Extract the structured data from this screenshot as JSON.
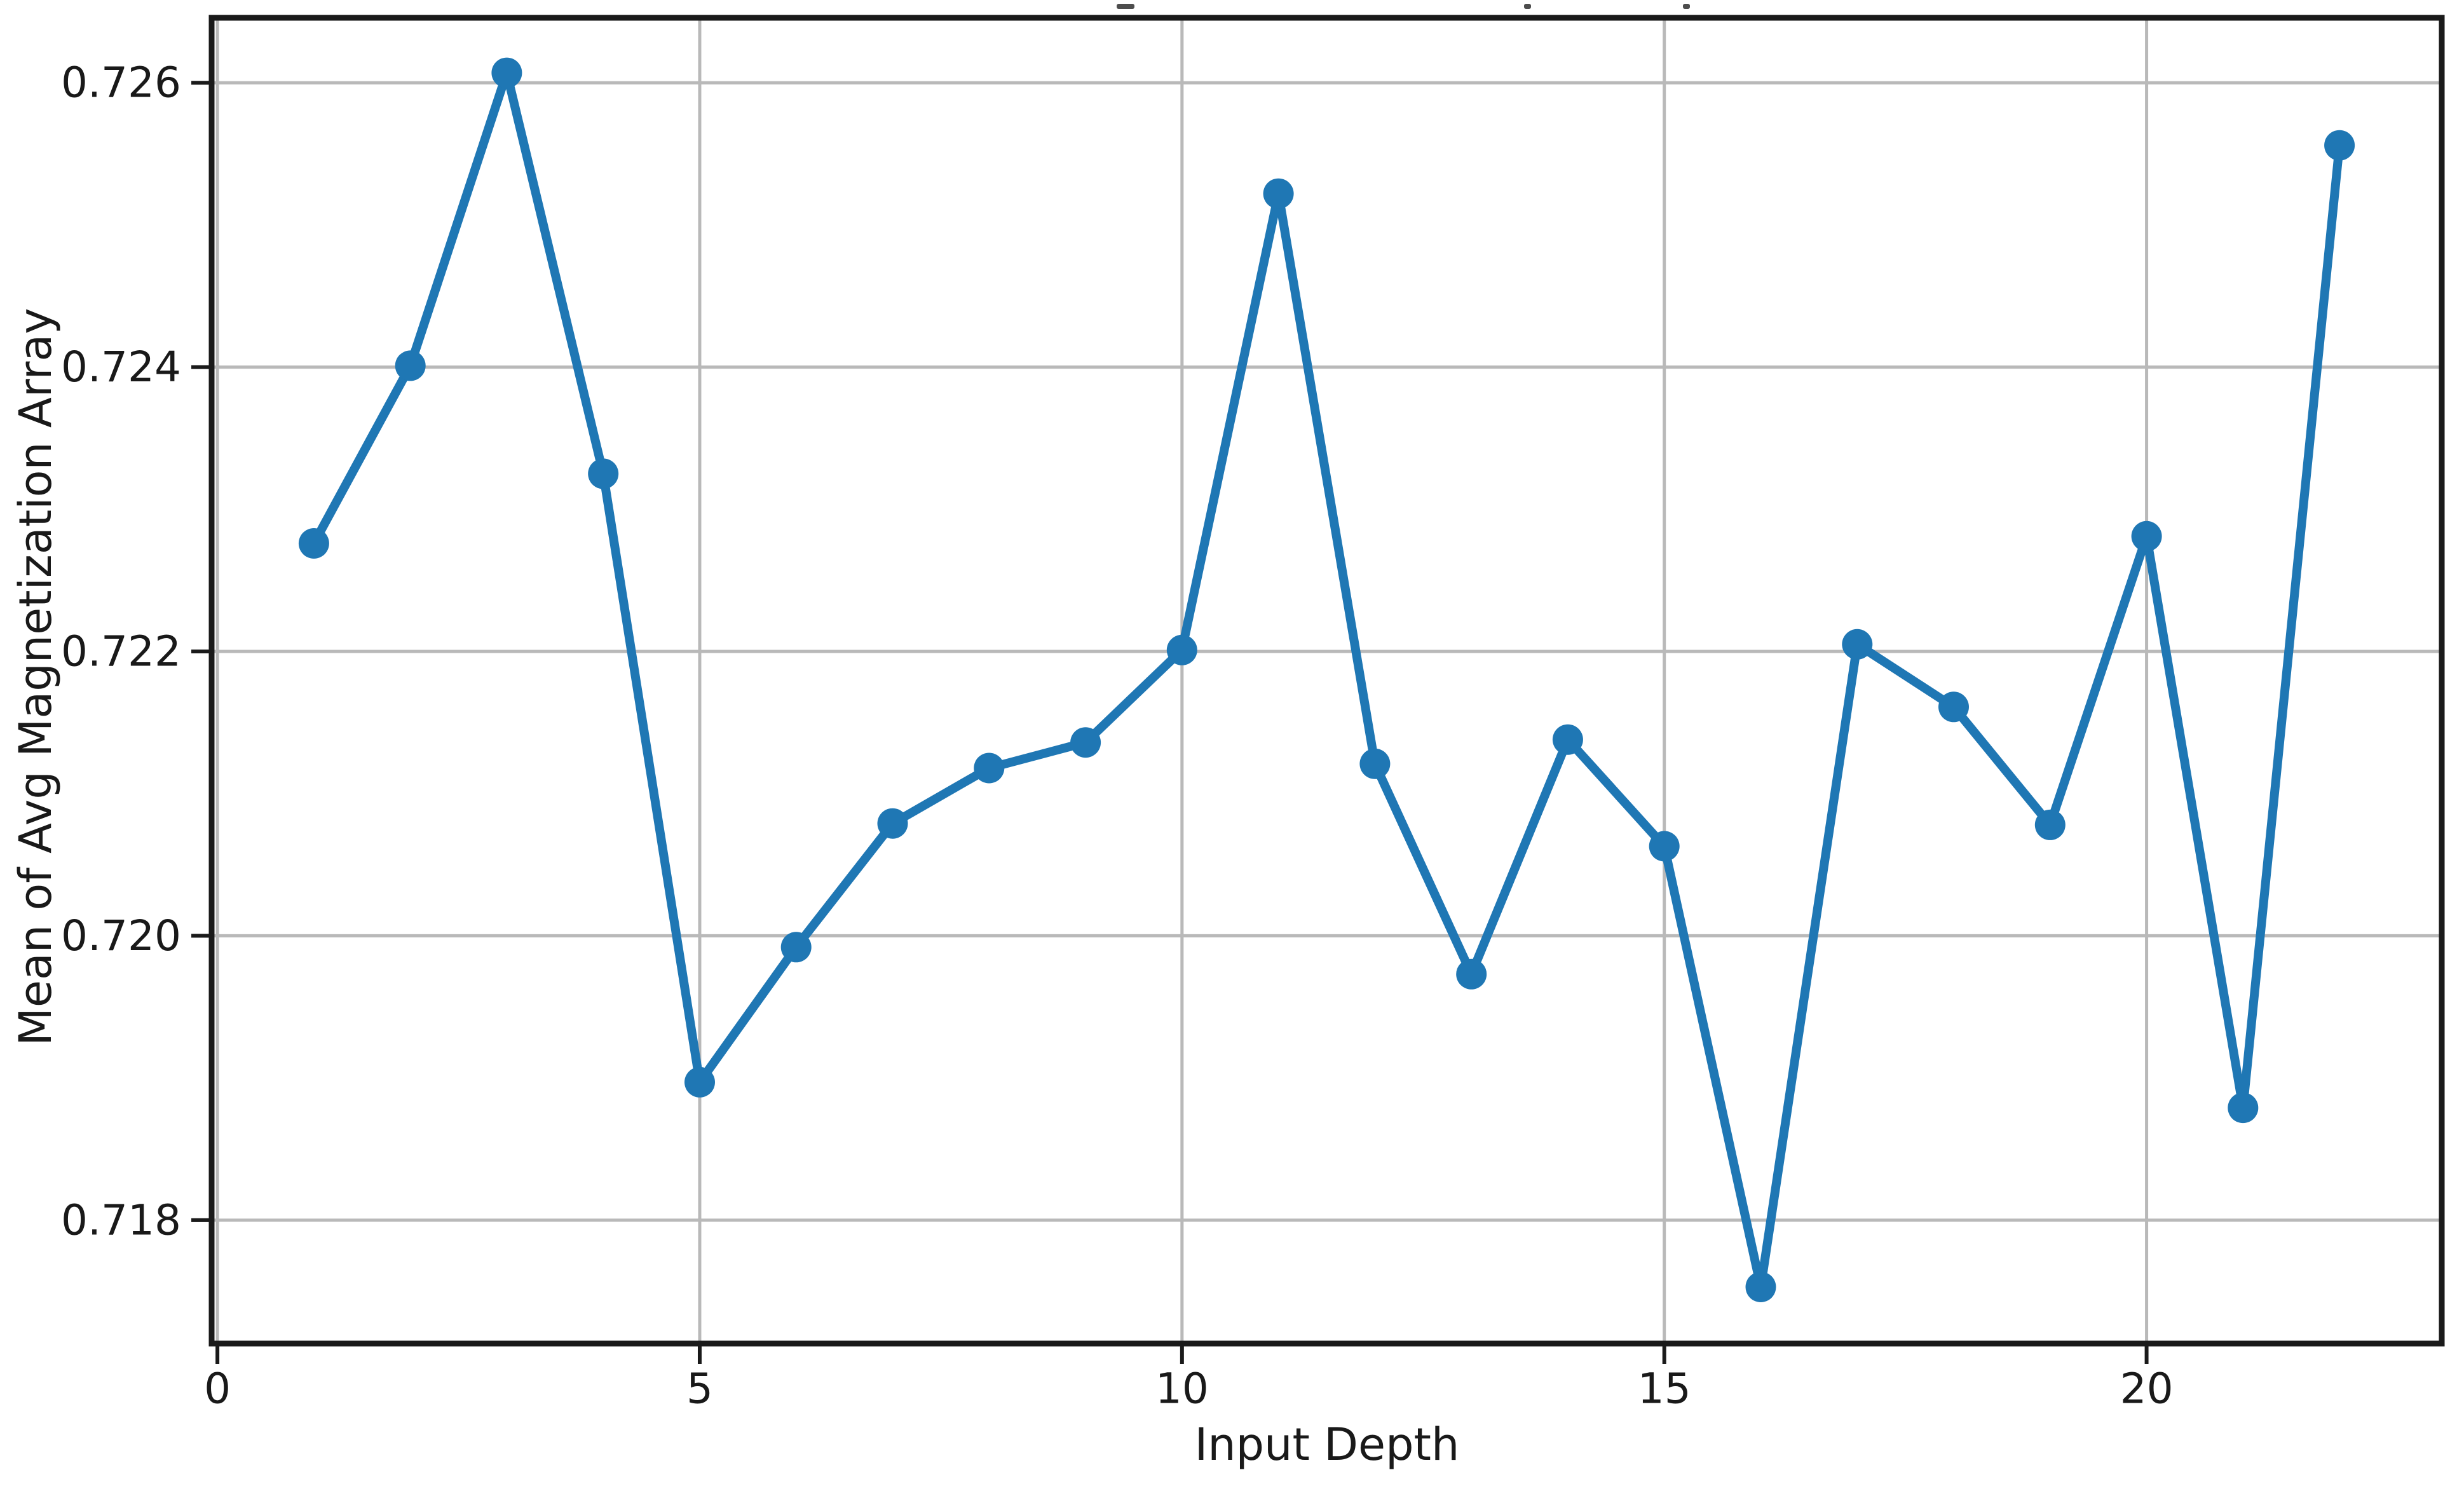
{
  "figure": {
    "background": "#ffffff",
    "clipped_title_marks": [
      {
        "x": 1757,
        "w": 28
      },
      {
        "x": 2398,
        "w": 11
      },
      {
        "x": 2648,
        "w": 11
      }
    ]
  },
  "chart_data": {
    "type": "line",
    "title": "",
    "xlabel": "Input Depth",
    "ylabel": "Mean of Avg Magnetization Array",
    "x": [
      1,
      2,
      3,
      4,
      5,
      6,
      7,
      8,
      9,
      10,
      11,
      12,
      13,
      14,
      15,
      16,
      17,
      18,
      19,
      20,
      21,
      22
    ],
    "y": [
      0.72276,
      0.72401,
      0.72607,
      0.72325,
      0.71897,
      0.71992,
      0.72079,
      0.72118,
      0.72136,
      0.72201,
      0.72522,
      0.72121,
      0.71973,
      0.72138,
      0.72063,
      0.71753,
      0.72205,
      0.72161,
      0.72078,
      0.72281,
      0.71879,
      0.72556
    ],
    "series_name": "Mean of Avg Magnetization Array",
    "xticks": [
      0,
      5,
      10,
      15,
      20
    ],
    "xtick_labels": [
      "0",
      "5",
      "10",
      "15",
      "20"
    ],
    "yticks": [
      0.718,
      0.72,
      0.722,
      0.724,
      0.726
    ],
    "ytick_labels": [
      "0.718",
      "0.720",
      "0.722",
      "0.724",
      "0.726"
    ],
    "xlim": [
      -0.06,
      23.06
    ],
    "ylim": [
      0.717132,
      0.726457
    ],
    "grid": true,
    "legend": false,
    "line_color": "#1f77b4",
    "marker": "o",
    "marker_radius": 24,
    "line_width": 14,
    "grid_color": "#b9b9b9",
    "spine_color": "#1a1a1a",
    "text_color": "#191919"
  }
}
